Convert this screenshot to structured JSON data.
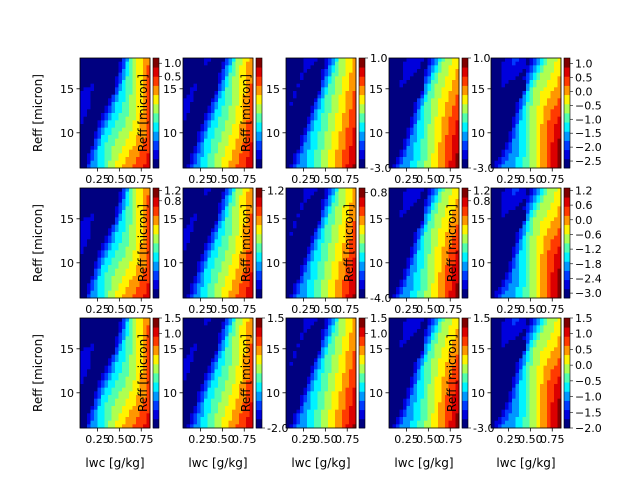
{
  "chart_data": {
    "type": "heatmap",
    "rows": 3,
    "cols": 5,
    "xlabel": "lwc [g/kg]",
    "ylabel": "Reff [micron]",
    "x_ticks": [
      0.25,
      0.5,
      0.75
    ],
    "x_tick_labels": [
      "0.25",
      "0.50",
      "0.75"
    ],
    "y_ticks": [
      10,
      15
    ],
    "y_tick_labels": [
      "10",
      "15"
    ],
    "xlim": [
      0.05,
      0.85
    ],
    "ylim": [
      6,
      18.5
    ],
    "colormap": "jet",
    "diamonds": [
      [
        0.18,
        9.2
      ],
      [
        0.4,
        15.2
      ]
    ],
    "panels": [
      {
        "vmin": -3.0,
        "vmax": 1.2,
        "cbar_ticks": [
          1.0,
          0.5
        ],
        "cbar_tick_labels": [
          "1.0",
          "0.5"
        ],
        "cbar_label": "Reff [micron]"
      },
      {
        "vmin": -3.0,
        "vmax": 1.0,
        "cbar_ticks": [],
        "cbar_tick_labels": [],
        "cbar_label": "Reff [micron]"
      },
      {
        "vmin": -3.0,
        "vmax": 1.0,
        "cbar_ticks": [
          1.0,
          -3.0
        ],
        "cbar_tick_labels": [
          "1.0",
          "-3.0"
        ],
        "cbar_label": ""
      },
      {
        "vmin": -3.0,
        "vmax": 1.0,
        "cbar_ticks": [
          1.0,
          -3.0
        ],
        "cbar_tick_labels": [
          "1.0",
          "-3.0"
        ],
        "cbar_label": ""
      },
      {
        "vmin": -2.75,
        "vmax": 1.2,
        "cbar_ticks": [
          1.0,
          0.5,
          0.0,
          -0.5,
          -1.0,
          -1.5,
          -2.0,
          -2.5
        ],
        "cbar_tick_labels": [
          "1.0",
          "0.5",
          "0.0",
          "−0.5",
          "−1.0",
          "−1.5",
          "−2.0",
          "−2.5"
        ],
        "cbar_label": ""
      },
      {
        "vmin": -3.0,
        "vmax": 1.3,
        "cbar_ticks": [
          1.2,
          0.8
        ],
        "cbar_tick_labels": [
          "1.2",
          "0.8"
        ],
        "cbar_label": "Reff [micron]"
      },
      {
        "vmin": -3.0,
        "vmax": 1.3,
        "cbar_ticks": [
          1.2
        ],
        "cbar_tick_labels": [
          "1.2"
        ],
        "cbar_label": "Reff [micron]"
      },
      {
        "vmin": -4.0,
        "vmax": 1.0,
        "cbar_ticks": [
          0.8,
          -4.0
        ],
        "cbar_tick_labels": [
          "0.8",
          "-4.0"
        ],
        "cbar_label": "Reff [micron]"
      },
      {
        "vmin": -3.0,
        "vmax": 1.3,
        "cbar_ticks": [
          1.2,
          0.8
        ],
        "cbar_tick_labels": [
          "1.2",
          "0.8"
        ],
        "cbar_label": "Reff [micron]"
      },
      {
        "vmin": -3.2,
        "vmax": 1.3,
        "cbar_ticks": [
          1.2,
          0.6,
          0.0,
          -0.6,
          -1.2,
          -1.8,
          -2.4,
          -3.0
        ],
        "cbar_tick_labels": [
          "1.2",
          "0.6",
          "0.0",
          "−0.6",
          "−1.2",
          "−1.8",
          "−2.4",
          "−3.0"
        ],
        "cbar_label": ""
      },
      {
        "vmin": -2.0,
        "vmax": 1.5,
        "cbar_ticks": [
          1.5,
          1.0
        ],
        "cbar_tick_labels": [
          "1.5",
          "1.0"
        ],
        "cbar_label": "Reff [micron]"
      },
      {
        "vmin": -2.0,
        "vmax": 1.5,
        "cbar_ticks": [
          1.5,
          -2.0
        ],
        "cbar_tick_labels": [
          "1.5",
          "-2.0"
        ],
        "cbar_label": "Reff [micron]"
      },
      {
        "vmin": -2.0,
        "vmax": 1.5,
        "cbar_ticks": [
          1.5,
          1.0
        ],
        "cbar_tick_labels": [
          "1.5",
          "1.0"
        ],
        "cbar_label": ""
      },
      {
        "vmin": -3.0,
        "vmax": 1.5,
        "cbar_ticks": [
          1.5,
          -3.0
        ],
        "cbar_tick_labels": [
          "1.5",
          "-3.0"
        ],
        "cbar_label": "Reff [micron]"
      },
      {
        "vmin": -2.0,
        "vmax": 1.5,
        "cbar_ticks": [
          1.5,
          1.0,
          0.5,
          0.0,
          -0.5,
          -1.0,
          -1.5,
          -2.0
        ],
        "cbar_tick_labels": [
          "1.5",
          "1.0",
          "0.5",
          "0.0",
          "−0.5",
          "−1.0",
          "−1.5",
          "−2.0"
        ],
        "cbar_label": ""
      }
    ]
  }
}
